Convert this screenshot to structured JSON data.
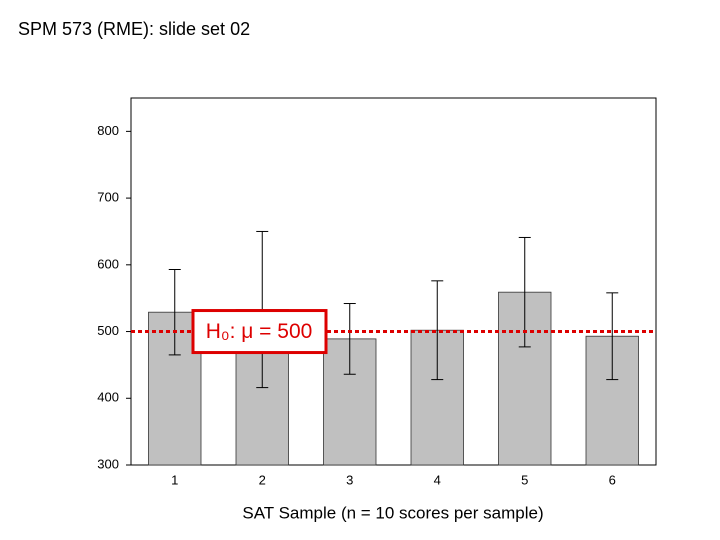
{
  "slide_title": "SPM 573 (RME): slide set 02",
  "chart_data": {
    "type": "bar",
    "xlabel": "SAT Sample (n = 10 scores per sample)",
    "categories": [
      "1",
      "2",
      "3",
      "4",
      "5",
      "6"
    ],
    "values": [
      529,
      533,
      489,
      502,
      559,
      493
    ],
    "errors": [
      64,
      117,
      53,
      74,
      82,
      65
    ],
    "color": "#c0c0c0",
    "ylim": [
      300,
      850
    ],
    "yticks": [
      300,
      400,
      500,
      600,
      700,
      800
    ],
    "reference_line": {
      "value": 500,
      "color": "#dd0000",
      "label": "H₀: μ = 500"
    }
  }
}
